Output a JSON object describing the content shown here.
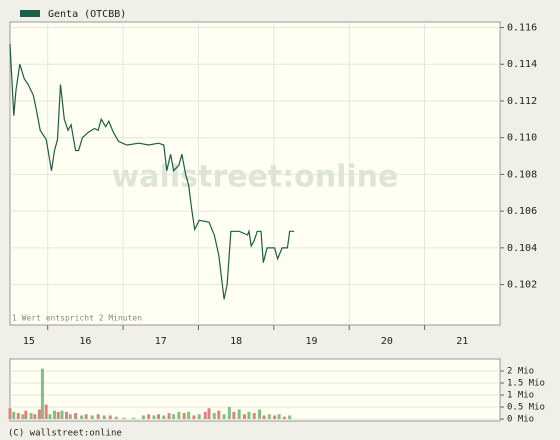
{
  "chart_data": [
    {
      "type": "line",
      "series": [
        {
          "name": "Genta (OTCBB)",
          "color": "#1b5e48",
          "x": [
            15.5,
            15.55,
            15.58,
            15.63,
            15.69,
            15.74,
            15.81,
            15.85,
            15.9,
            15.98,
            16.05,
            16.09,
            16.13,
            16.17,
            16.22,
            16.27,
            16.31,
            16.37,
            16.41,
            16.46,
            16.54,
            16.62,
            16.67,
            16.71,
            16.77,
            16.81,
            16.87,
            16.94,
            17.05,
            17.21,
            17.34,
            17.47,
            17.54,
            17.58,
            17.63,
            17.67,
            17.74,
            17.78,
            17.83,
            17.87,
            17.91,
            17.95,
            18.01,
            18.14,
            18.21,
            18.27,
            18.34,
            18.38,
            18.43,
            18.54,
            18.65,
            18.67,
            18.7,
            18.74,
            18.78,
            18.83,
            18.86,
            18.91,
            19.01,
            19.05,
            19.11,
            19.18,
            19.21,
            19.27
          ],
          "values": [
            0.1151,
            0.1112,
            0.1126,
            0.114,
            0.1132,
            0.1129,
            0.1123,
            0.1115,
            0.1104,
            0.1099,
            0.1082,
            0.1093,
            0.1099,
            0.1129,
            0.111,
            0.1104,
            0.1107,
            0.1093,
            0.1093,
            0.11,
            0.1103,
            0.1105,
            0.1104,
            0.111,
            0.1106,
            0.1109,
            0.1103,
            0.1098,
            0.1096,
            0.1097,
            0.1096,
            0.1097,
            0.1096,
            0.1082,
            0.1091,
            0.1082,
            0.1085,
            0.1091,
            0.108,
            0.1074,
            0.1061,
            0.105,
            0.1055,
            0.1054,
            0.1047,
            0.1036,
            0.1012,
            0.102,
            0.1049,
            0.1049,
            0.1047,
            0.1049,
            0.1041,
            0.1044,
            0.1049,
            0.1049,
            0.1032,
            0.104,
            0.104,
            0.1034,
            0.104,
            0.104,
            0.1049,
            0.1049
          ]
        }
      ],
      "xlim": [
        15.5,
        22
      ],
      "xticks": [
        15,
        16,
        17,
        18,
        19,
        20,
        21
      ],
      "ylim": [
        0.0998,
        0.1163
      ],
      "yticks": [
        0.102,
        0.104,
        0.106,
        0.108,
        {
          "value": 0.11,
          "label": "0.110"
        },
        0.112,
        0.114,
        0.116
      ],
      "grid": true,
      "note": "1 Wert entspricht 2 Minuten",
      "watermark": "wallstreet:online"
    },
    {
      "type": "bar",
      "x": [
        15.5,
        15.55,
        15.61,
        15.67,
        15.71,
        15.78,
        15.83,
        15.89,
        15.93,
        15.98,
        16.03,
        16.09,
        16.14,
        16.19,
        16.25,
        16.3,
        16.37,
        16.45,
        16.51,
        16.59,
        16.67,
        16.75,
        16.83,
        16.91,
        17.01,
        17.14,
        17.27,
        17.34,
        17.41,
        17.47,
        17.54,
        17.61,
        17.67,
        17.74,
        17.81,
        17.87,
        17.94,
        18.01,
        18.09,
        18.14,
        18.21,
        18.27,
        18.34,
        18.41,
        18.47,
        18.54,
        18.61,
        18.67,
        18.74,
        18.81,
        18.87,
        18.94,
        19.01,
        19.07,
        19.14,
        19.21
      ],
      "values": [
        0.45,
        0.3,
        0.25,
        0.2,
        0.35,
        0.25,
        0.2,
        0.4,
        2.1,
        0.6,
        0.2,
        0.35,
        0.3,
        0.35,
        0.3,
        0.2,
        0.25,
        0.15,
        0.2,
        0.15,
        0.2,
        0.15,
        0.15,
        0.1,
        0.05,
        0.05,
        0.15,
        0.2,
        0.15,
        0.2,
        0.15,
        0.25,
        0.2,
        0.3,
        0.25,
        0.3,
        0.15,
        0.2,
        0.3,
        0.45,
        0.25,
        0.35,
        0.2,
        0.5,
        0.3,
        0.4,
        0.2,
        0.3,
        0.25,
        0.4,
        0.15,
        0.2,
        0.15,
        0.2,
        0.1,
        0.15
      ],
      "colors": [
        "#e08080",
        "#80c080",
        "#e08080",
        "#80c080",
        "#e08080",
        "#80c080",
        "#e08080",
        "#e08080",
        "#80c080",
        "#e08080",
        "#80c080",
        "#80c080",
        "#e08080",
        "#80c080",
        "#e08080",
        "#80c080",
        "#e08080",
        "#80c080",
        "#e08080",
        "#80c080",
        "#e08080",
        "#80c080",
        "#e08080",
        "#80c080",
        "#e08080",
        "#80c080",
        "#80c080",
        "#e08080",
        "#80c080",
        "#e08080",
        "#80c080",
        "#e08080",
        "#80c080",
        "#80c080",
        "#e08080",
        "#80c080",
        "#e08080",
        "#80c080",
        "#e08080",
        "#e08080",
        "#80c080",
        "#e08080",
        "#80c080",
        "#80c080",
        "#e08080",
        "#80c080",
        "#e08080",
        "#80c080",
        "#e08080",
        "#80c080",
        "#e08080",
        "#80c080",
        "#e08080",
        "#80c080",
        "#e08080",
        "#80c080"
      ],
      "xlim": [
        15.5,
        22
      ],
      "ylim": [
        -0.08,
        2.5
      ],
      "yticks": [
        {
          "value": 0,
          "label": "0 Mio"
        },
        {
          "value": 0.5,
          "label": "0.5 Mio"
        },
        {
          "value": 1,
          "label": "1 Mio"
        },
        {
          "value": 1.5,
          "label": "1.5 Mio"
        },
        {
          "value": 2,
          "label": "2 Mio"
        }
      ],
      "grid": true
    }
  ],
  "footer": "(C) wallstreet:online"
}
